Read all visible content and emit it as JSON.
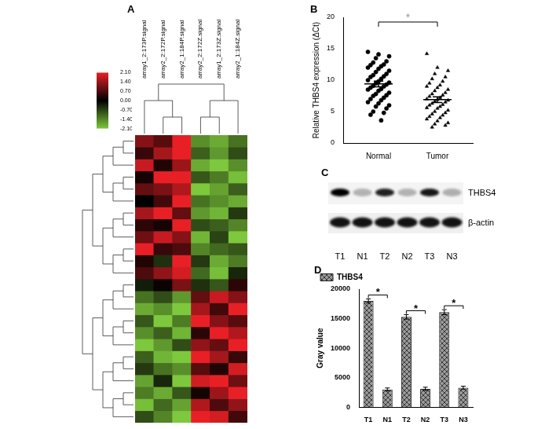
{
  "chart_data": [
    {
      "type": "heatmap",
      "panel": "A",
      "columns": [
        "array1_2:173P.signal",
        "array2_2:172P.signal",
        "array2_1:184P.signal",
        "array2_2:172Z.signal",
        "array1_2:173Z.signal",
        "array2_1:184Z.signal"
      ],
      "column_dendrogram": [
        [
          0,
          [
            1,
            2
          ]
        ],
        [
          [
            3,
            4
          ],
          5
        ]
      ],
      "cells": [
        [
          1.2,
          0.8,
          2.1,
          -1.5,
          -1.8,
          -1.2
        ],
        [
          0.5,
          1.5,
          2.1,
          -1.0,
          -1.6,
          -0.8
        ],
        [
          1.8,
          0.3,
          1.4,
          -1.8,
          -2.1,
          -1.5
        ],
        [
          0.2,
          2.1,
          2.1,
          -0.9,
          -1.3,
          -2.0
        ],
        [
          0.9,
          1.1,
          1.6,
          -2.1,
          -1.7,
          -1.0
        ],
        [
          0.0,
          0.6,
          2.1,
          -1.2,
          -1.5,
          -1.8
        ],
        [
          1.5,
          2.1,
          0.9,
          -1.6,
          -1.9,
          -0.6
        ],
        [
          0.4,
          0.2,
          2.1,
          -0.8,
          -1.0,
          -1.4
        ],
        [
          1.0,
          1.8,
          1.2,
          -1.9,
          -0.7,
          -2.1
        ],
        [
          2.1,
          0.5,
          0.7,
          -1.4,
          -1.1,
          -0.9
        ],
        [
          0.3,
          -0.5,
          2.1,
          -0.6,
          -1.8,
          -1.3
        ],
        [
          0.7,
          1.3,
          1.9,
          -1.1,
          -2.0,
          -0.4
        ],
        [
          -0.3,
          0.1,
          1.1,
          -0.5,
          -0.9,
          0.4
        ],
        [
          -1.2,
          -0.8,
          -1.6,
          0.9,
          1.8,
          1.2
        ],
        [
          -1.8,
          -1.5,
          -2.1,
          1.5,
          0.6,
          2.1
        ],
        [
          -0.9,
          -2.1,
          -1.3,
          2.1,
          1.2,
          0.8
        ],
        [
          -1.5,
          -1.0,
          -1.9,
          0.4,
          2.1,
          1.6
        ],
        [
          -2.1,
          -1.6,
          -0.8,
          1.3,
          0.9,
          2.1
        ],
        [
          -1.0,
          -1.9,
          -2.1,
          2.1,
          1.5,
          0.5
        ],
        [
          -0.6,
          -1.2,
          -1.5,
          0.8,
          0.3,
          1.9
        ],
        [
          -1.7,
          -0.4,
          -2.1,
          1.9,
          2.1,
          1.0
        ],
        [
          -1.3,
          -1.8,
          -0.9,
          0.2,
          1.4,
          2.1
        ],
        [
          -2.0,
          -1.1,
          -1.7,
          1.6,
          0.7,
          1.3
        ],
        [
          -0.8,
          -1.4,
          -2.1,
          2.1,
          1.9,
          0.6
        ]
      ],
      "color_bar": {
        "range": [
          -2.1,
          2.1
        ],
        "ticks": [
          {
            "value": 2.1,
            "label": "2.10"
          },
          {
            "value": 1.4,
            "label": "1.40"
          },
          {
            "value": 0.7,
            "label": "0.70"
          },
          {
            "value": 0,
            "label": "0.00"
          },
          {
            "value": -0.7,
            "label": "-0.70"
          },
          {
            "value": -1.4,
            "label": "-1.40"
          },
          {
            "value": -2.1,
            "label": "-2.10"
          }
        ]
      }
    },
    {
      "type": "scatter",
      "panel": "B",
      "y_label": "Relative THBS4 expression (ΔCt)",
      "series": [
        {
          "name": "Normal",
          "marker": "circle",
          "color": "#000000",
          "values": [
            14.5,
            14.1,
            13.8,
            13.5,
            13.0,
            12.8,
            12.5,
            12.4,
            12.2,
            12.0,
            11.8,
            11.5,
            11.3,
            11.0,
            10.8,
            10.6,
            10.5,
            10.2,
            10.0,
            9.8,
            9.6,
            9.5,
            9.3,
            9.1,
            9.0,
            8.8,
            8.6,
            8.5,
            8.3,
            8.0,
            7.8,
            7.6,
            7.5,
            7.2,
            7.0,
            6.8,
            6.5,
            6.3,
            6.0,
            5.8,
            5.5,
            5.0,
            4.8,
            4.5,
            3.6
          ],
          "mean": 9.4,
          "sem": 0.45
        },
        {
          "name": "Tumor",
          "marker": "triangle",
          "color": "#000000",
          "values": [
            14.2,
            12.0,
            11.5,
            11.0,
            10.5,
            10.2,
            9.8,
            9.5,
            9.2,
            9.0,
            8.8,
            8.5,
            8.3,
            8.0,
            7.8,
            7.6,
            7.4,
            7.2,
            7.0,
            6.9,
            6.8,
            6.6,
            6.5,
            6.3,
            6.1,
            6.0,
            5.8,
            5.6,
            5.5,
            5.2,
            5.0,
            4.8,
            4.6,
            4.4,
            4.2,
            4.0,
            3.8,
            3.5,
            3.2,
            3.0,
            2.8,
            2.5
          ],
          "mean": 6.9,
          "sem": 0.45
        }
      ],
      "ylim": [
        0,
        20
      ],
      "yticks": [
        0,
        5,
        10,
        15,
        20
      ],
      "grid": false,
      "significance": "*"
    },
    {
      "type": "bar",
      "panel": "D",
      "y_label": "Gray value",
      "categories": [
        "T1",
        "N1",
        "T2",
        "N2",
        "T3",
        "N3"
      ],
      "series": [
        {
          "name": "THBS4",
          "color": "#9a9a9a",
          "values": [
            18000,
            3000,
            15300,
            3100,
            16100,
            3300
          ],
          "errors": [
            350,
            250,
            380,
            280,
            420,
            250
          ]
        }
      ],
      "ylim": [
        0,
        20000
      ],
      "yticks": [
        0,
        5000,
        10000,
        15000,
        20000
      ],
      "grid": false,
      "legend": "top left",
      "comparisons": [
        {
          "pair": [
            0,
            1
          ],
          "label": "*"
        },
        {
          "pair": [
            2,
            3
          ],
          "label": "*"
        },
        {
          "pair": [
            4,
            5
          ],
          "label": "*"
        }
      ]
    }
  ],
  "blot": {
    "panel": "C",
    "rows": [
      "THBS4",
      "β-actin"
    ],
    "lanes": [
      "T1",
      "N1",
      "T2",
      "N2",
      "T3",
      "N3"
    ]
  }
}
